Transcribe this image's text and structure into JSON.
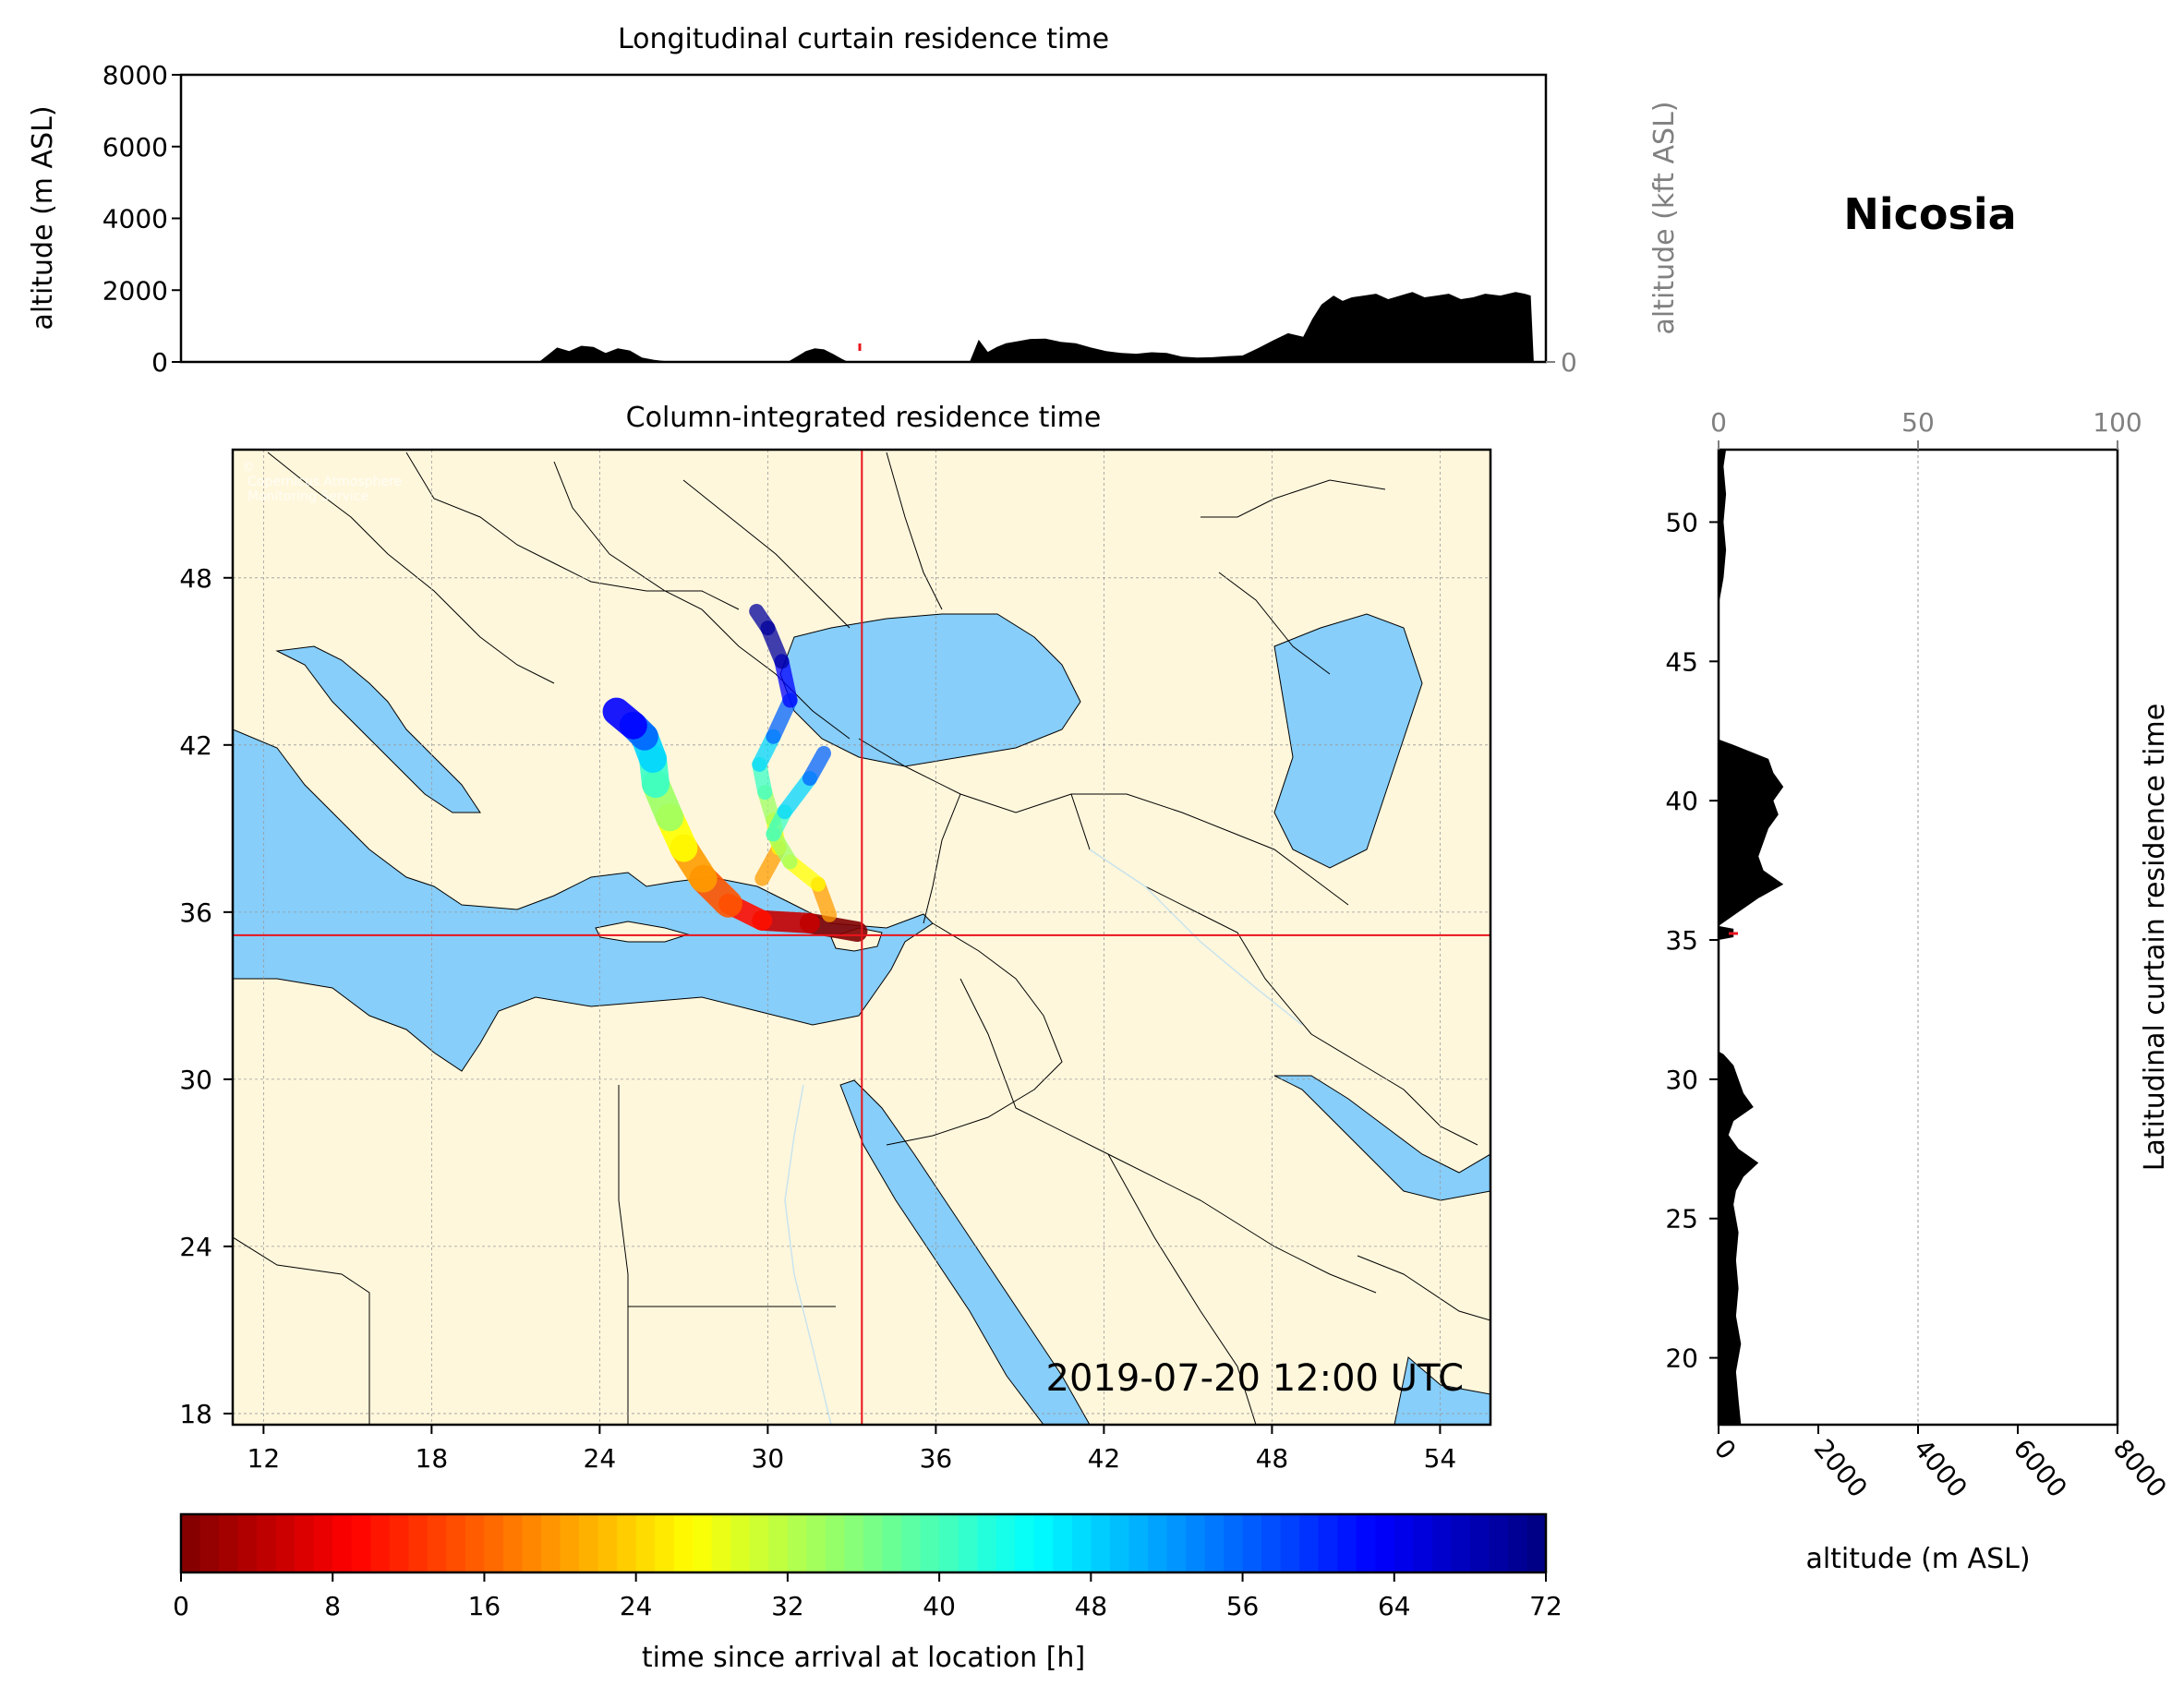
{
  "colors": {
    "ocean": "#87cefa",
    "land": "#fff7dc",
    "crosshair": "#e8141b",
    "profile": "#000000",
    "secondary_axis": "#808080",
    "grid": "#9a9a9a"
  },
  "location": {
    "name": "Nicosia",
    "lat": 35.17,
    "lon": 33.36
  },
  "timestamp": "2019-07-20 12:00 UTC",
  "map_faint_text": [
    "©",
    "Copernicus Atmosphere",
    "Monitoring Service"
  ],
  "chart_data": [
    {
      "id": "longitudinal_curtain",
      "type": "area",
      "title": "Longitudinal curtain residence time",
      "ylabel": "altitude (m ASL)",
      "ylabel_right": "altitude (kft ASL)",
      "ylim": [
        0,
        8000
      ],
      "yticks": [
        "0",
        "2000",
        "4000",
        "6000",
        "8000"
      ],
      "yticks_right": [
        "0",
        "50",
        "100"
      ],
      "xlim": [
        10,
        55
      ],
      "series": [
        {
          "x": [
            10,
            21.8,
            22.1,
            22.4,
            22.8,
            23.2,
            23.6,
            24.0,
            24.4,
            24.8,
            25.2,
            25.6,
            26.0,
            26.1,
            30.0,
            30.3,
            30.6,
            30.9,
            31.2,
            31.5,
            31.8,
            32.0,
            32.2,
            32.5,
            36.0,
            36.3,
            36.6,
            36.9,
            37.2,
            37.6,
            38.0,
            38.5,
            39.0,
            39.5,
            40.0,
            40.5,
            41.0,
            41.5,
            42.0,
            42.5,
            43.0,
            43.5,
            44.0,
            44.5,
            45.0,
            45.5,
            46.0,
            46.5,
            47.0,
            47.3,
            47.6,
            48.0,
            48.3,
            48.6,
            49.0,
            49.4,
            49.8,
            50.2,
            50.6,
            51.0,
            51.4,
            51.8,
            52.2,
            52.6,
            53.0,
            53.5,
            54.0,
            54.3,
            54.5,
            54.6,
            55
          ],
          "y": [
            0,
            0,
            200,
            400,
            300,
            450,
            420,
            250,
            380,
            320,
            120,
            60,
            20,
            0,
            0,
            150,
            300,
            380,
            350,
            220,
            80,
            0,
            0,
            0,
            0,
            620,
            280,
            420,
            520,
            580,
            640,
            650,
            560,
            520,
            400,
            300,
            250,
            230,
            270,
            250,
            150,
            120,
            130,
            160,
            180,
            380,
            600,
            800,
            700,
            1200,
            1600,
            1850,
            1700,
            1800,
            1850,
            1900,
            1750,
            1850,
            1950,
            1800,
            1850,
            1900,
            1750,
            1800,
            1900,
            1850,
            1950,
            1900,
            1850,
            0,
            0
          ]
        }
      ]
    },
    {
      "id": "column_integrated",
      "type": "heatmap",
      "title": "Column-integrated residence time",
      "xlim": [
        10.9,
        55.8
      ],
      "ylim": [
        17.6,
        52.6
      ],
      "xticks": [
        "12",
        "18",
        "24",
        "30",
        "36",
        "42",
        "48",
        "54"
      ],
      "yticks": [
        "18",
        "24",
        "30",
        "36",
        "42",
        "48"
      ],
      "plume_tracks": [
        {
          "name": "western branch",
          "lon": [
            33.2,
            31.5,
            29.8,
            28.6,
            27.7,
            27.0,
            26.5,
            26.0,
            25.9,
            25.6,
            25.2,
            24.6
          ],
          "lat": [
            35.3,
            35.6,
            35.7,
            36.3,
            37.2,
            38.3,
            39.4,
            40.6,
            41.5,
            42.3,
            42.7,
            43.2
          ]
        },
        {
          "name": "northern branch",
          "lon": [
            29.8,
            30.4,
            30.2,
            29.9,
            29.7,
            30.2,
            30.8,
            30.5,
            30.0,
            29.6
          ],
          "lat": [
            37.2,
            38.3,
            39.3,
            40.3,
            41.3,
            42.3,
            43.6,
            45.0,
            46.2,
            46.8
          ]
        },
        {
          "name": "eastern branch",
          "lon": [
            32.2,
            31.8,
            30.8,
            30.2,
            30.6,
            31.5,
            32.0
          ],
          "lat": [
            35.9,
            37.0,
            37.8,
            38.8,
            39.6,
            40.8,
            41.7
          ]
        }
      ],
      "tail_hours": [
        0,
        5,
        10,
        15,
        20,
        27,
        34,
        41,
        48,
        56,
        63,
        70
      ]
    },
    {
      "id": "latitudinal_curtain",
      "type": "area",
      "title": "Latitudinal curtain residence time",
      "xlabel": "altitude (m ASL)",
      "xlim": [
        0,
        8000
      ],
      "xticks": [
        "0",
        "2000",
        "4000",
        "6000",
        "8000"
      ],
      "xticks_top": [
        "0",
        "50",
        "100"
      ],
      "ylim": [
        17.6,
        52.6
      ],
      "yticks": [
        "20",
        "25",
        "30",
        "35",
        "40",
        "45",
        "50"
      ],
      "series": [
        {
          "lat": [
            17.6,
            18.5,
            19.5,
            20.5,
            21.5,
            22.5,
            23.5,
            24.5,
            25.5,
            26.0,
            26.5,
            27.0,
            27.5,
            28.0,
            28.5,
            29.0,
            29.5,
            30.0,
            30.5,
            30.9,
            31.0,
            35.0,
            35.1,
            35.4,
            35.5,
            36.0,
            36.5,
            37.0,
            37.5,
            38.0,
            38.5,
            39.0,
            39.5,
            40.0,
            40.5,
            41.0,
            41.5,
            42.0,
            42.2,
            47.0,
            48.0,
            49.0,
            50.0,
            51.0,
            52.0,
            52.6
          ],
          "alt": [
            450,
            400,
            350,
            450,
            350,
            400,
            350,
            400,
            300,
            350,
            500,
            800,
            400,
            200,
            300,
            700,
            500,
            400,
            300,
            100,
            0,
            0,
            300,
            300,
            0,
            400,
            800,
            1300,
            900,
            800,
            900,
            1000,
            1200,
            1100,
            1300,
            1100,
            1000,
            300,
            0,
            0,
            100,
            150,
            100,
            150,
            100,
            150
          ]
        }
      ]
    },
    {
      "id": "colorbar",
      "type": "heatmap",
      "xlabel": "time since arrival at location [h]",
      "vmin": 0,
      "vmax": 72,
      "ticks": [
        "0",
        "8",
        "16",
        "24",
        "32",
        "40",
        "48",
        "56",
        "64",
        "72"
      ],
      "colormap": "jet_r",
      "levels": 72
    }
  ]
}
